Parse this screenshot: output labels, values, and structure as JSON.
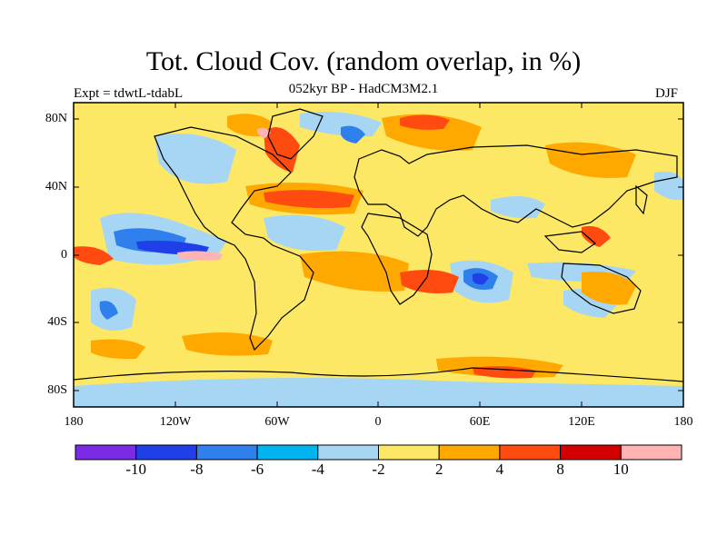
{
  "figure": {
    "title": "Tot. Cloud Cov. (random overlap, in %)",
    "subtitle": "052kyr BP - HadCM3M2.1",
    "experiment": "Expt = tdwtL-tdabL",
    "season": "DJF"
  },
  "axes": {
    "lat_labels": [
      "80N",
      "40N",
      "0",
      "40S",
      "80S"
    ],
    "lon_labels": [
      "180",
      "120W",
      "60W",
      "0",
      "60E",
      "120E",
      "180"
    ]
  },
  "colorbar": {
    "colors": [
      "#7b2be6",
      "#1f3fe8",
      "#2f80ec",
      "#00b4f0",
      "#a6d6f3",
      "#fde866",
      "#ffa800",
      "#ff4a10",
      "#d40000",
      "#ffb3b3"
    ],
    "labels": [
      "-10",
      "-8",
      "-6",
      "-4",
      "-2",
      "2",
      "4",
      "8",
      "10"
    ]
  }
}
